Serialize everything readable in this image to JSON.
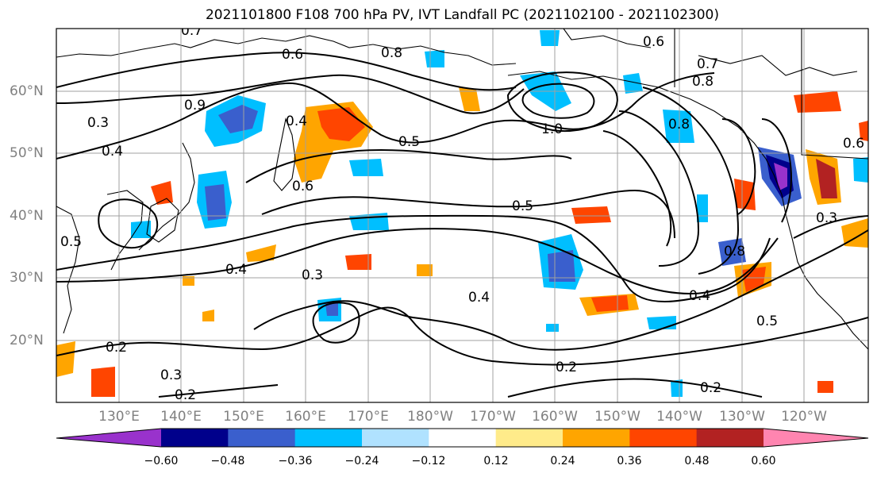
{
  "title": "2021101800 F108 700 hPa PV, IVT Landfall PC (2021102100 - 2021102300)",
  "lon_labels": [
    "130°E",
    "140°E",
    "150°E",
    "160°E",
    "170°E",
    "180°W",
    "170°W",
    "160°W",
    "150°W",
    "140°W",
    "130°W",
    "120°W"
  ],
  "lat_labels": [
    "60°N",
    "50°N",
    "40°N",
    "30°N",
    "20°N"
  ],
  "contour_labels": [
    "0.7",
    "0.6",
    "0.8",
    "0.6",
    "0.7",
    "0.8",
    "0.9",
    "1.0",
    "0.8",
    "0.4",
    "0.5",
    "0.3",
    "0.4",
    "0.5",
    "0.6",
    "0.5",
    "0.4",
    "0.3",
    "0.4",
    "0.2",
    "0.3",
    "0.2",
    "0.8",
    "0.4",
    "0.5",
    "0.2",
    "0.2",
    "0.3",
    "0.6"
  ],
  "colorbar": {
    "colors": [
      "#9932cc",
      "#00008b",
      "#3a5fcd",
      "#00bfff",
      "#b0e2ff",
      "#ffffff",
      "#ffeb8a",
      "#ffa500",
      "#ff4500",
      "#b22222",
      "#ff85b0"
    ],
    "tick_labels": [
      "−0.60",
      "−0.48",
      "−0.36",
      "−0.24",
      "−0.12",
      "0.12",
      "0.24",
      "0.36",
      "0.48",
      "0.60"
    ]
  }
}
